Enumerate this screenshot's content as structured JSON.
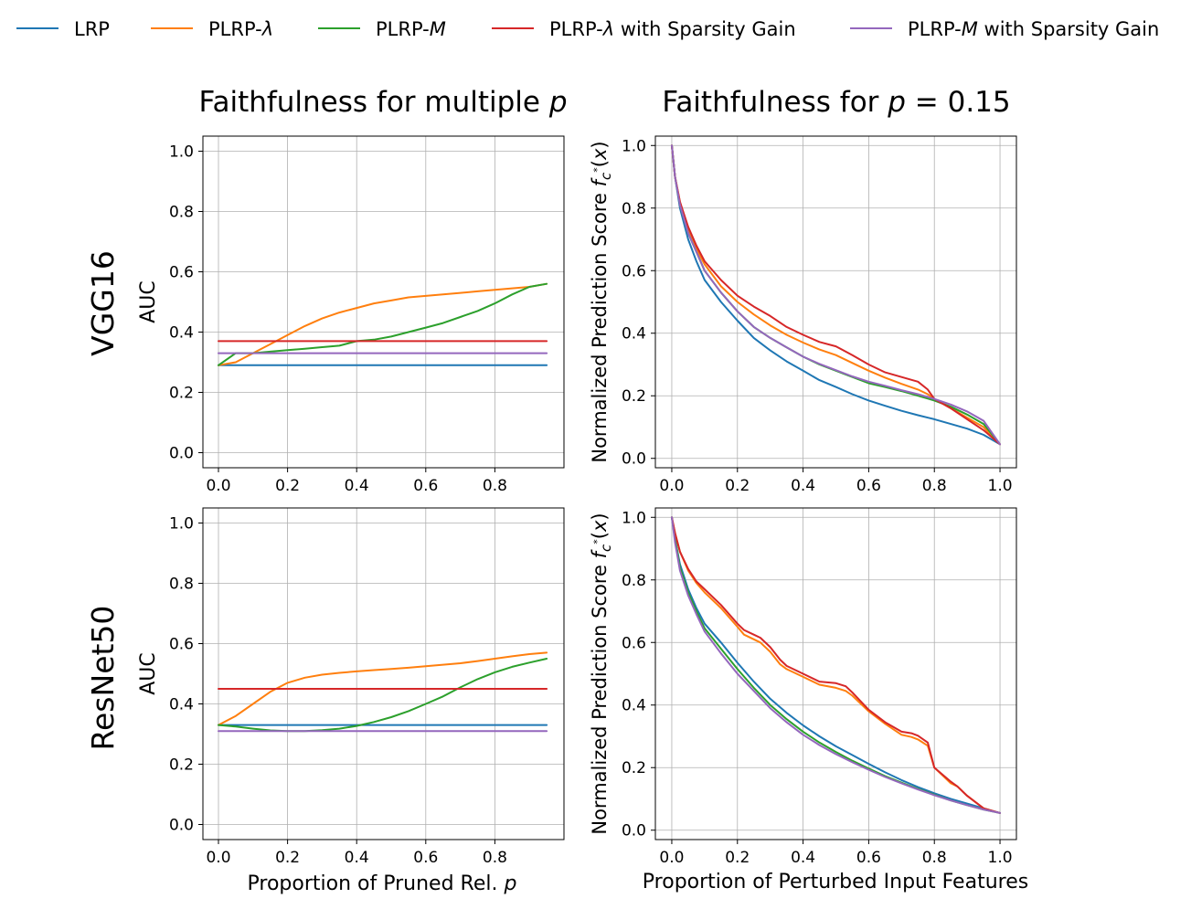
{
  "legend": [
    {
      "id": "lrp",
      "label": "LRP",
      "color": "#1f77b4"
    },
    {
      "id": "plrp_lambda",
      "label": "PLRP-λ",
      "color": "#ff7f0e"
    },
    {
      "id": "plrp_m",
      "label": "PLRP-M",
      "color": "#2ca02c"
    },
    {
      "id": "plrp_lambda_sg",
      "label": "PLRP-λ with Sparsity Gain",
      "color": "#d62728"
    },
    {
      "id": "plrp_m_sg",
      "label": "PLRP-M with Sparsity Gain",
      "color": "#9467bd"
    }
  ],
  "column_titles": [
    "Faithfulness for multiple p",
    "Faithfulness for p = 0.15"
  ],
  "row_labels": [
    "VGG16",
    "ResNet50"
  ],
  "chart_data": [
    {
      "type": "line",
      "title": "Faithfulness for multiple p",
      "row": "VGG16",
      "xlabel": "",
      "ylabel": "AUC",
      "xlim": [
        -0.045,
        1.0
      ],
      "ylim": [
        -0.05,
        1.05
      ],
      "xticks": [
        "0.0",
        "0.2",
        "0.4",
        "0.6",
        "0.8"
      ],
      "yticks": [
        "0.0",
        "0.2",
        "0.4",
        "0.6",
        "0.8",
        "1.0"
      ],
      "grid": true,
      "series": [
        {
          "name": "LRP",
          "x": [
            0,
            0.95
          ],
          "y": [
            0.29,
            0.29
          ]
        },
        {
          "name": "PLRP-λ",
          "x": [
            0,
            0.05,
            0.1,
            0.15,
            0.2,
            0.25,
            0.3,
            0.35,
            0.4,
            0.45,
            0.5,
            0.55,
            0.6,
            0.65,
            0.7,
            0.75,
            0.8,
            0.85,
            0.9,
            0.95
          ],
          "y": [
            0.29,
            0.3,
            0.33,
            0.36,
            0.39,
            0.42,
            0.445,
            0.465,
            0.48,
            0.495,
            0.505,
            0.515,
            0.52,
            0.525,
            0.53,
            0.535,
            0.54,
            0.545,
            0.55,
            0.56
          ]
        },
        {
          "name": "PLRP-M",
          "x": [
            0,
            0.05,
            0.1,
            0.15,
            0.2,
            0.25,
            0.3,
            0.35,
            0.4,
            0.45,
            0.5,
            0.55,
            0.6,
            0.65,
            0.7,
            0.75,
            0.8,
            0.85,
            0.9,
            0.95
          ],
          "y": [
            0.29,
            0.33,
            0.33,
            0.335,
            0.34,
            0.345,
            0.35,
            0.355,
            0.37,
            0.375,
            0.385,
            0.4,
            0.415,
            0.43,
            0.45,
            0.47,
            0.495,
            0.525,
            0.55,
            0.56
          ]
        },
        {
          "name": "PLRP-λ with Sparsity Gain",
          "x": [
            0,
            0.95
          ],
          "y": [
            0.37,
            0.37
          ]
        },
        {
          "name": "PLRP-M with Sparsity Gain",
          "x": [
            0,
            0.95
          ],
          "y": [
            0.33,
            0.33
          ]
        }
      ]
    },
    {
      "type": "line",
      "title": "Faithfulness for p = 0.15",
      "row": "VGG16",
      "xlabel": "",
      "ylabel": "Normalized Prediction Score f_c*(x)",
      "xlim": [
        -0.05,
        1.05
      ],
      "ylim": [
        -0.03,
        1.03
      ],
      "xticks": [
        "0.0",
        "0.2",
        "0.4",
        "0.6",
        "0.8",
        "1.0"
      ],
      "yticks": [
        "0.0",
        "0.2",
        "0.4",
        "0.6",
        "0.8",
        "1.0"
      ],
      "grid": true,
      "series": [
        {
          "name": "LRP",
          "x": [
            0,
            0.01,
            0.025,
            0.05,
            0.075,
            0.1,
            0.15,
            0.2,
            0.25,
            0.3,
            0.35,
            0.4,
            0.45,
            0.5,
            0.55,
            0.6,
            0.65,
            0.7,
            0.75,
            0.8,
            0.85,
            0.9,
            0.95,
            1.0
          ],
          "y": [
            1.0,
            0.9,
            0.8,
            0.7,
            0.63,
            0.57,
            0.5,
            0.44,
            0.385,
            0.345,
            0.31,
            0.28,
            0.25,
            0.228,
            0.205,
            0.185,
            0.168,
            0.152,
            0.138,
            0.125,
            0.11,
            0.095,
            0.075,
            0.045
          ]
        },
        {
          "name": "PLRP-λ",
          "x": [
            0,
            0.01,
            0.025,
            0.05,
            0.075,
            0.1,
            0.15,
            0.2,
            0.25,
            0.3,
            0.35,
            0.4,
            0.45,
            0.5,
            0.55,
            0.6,
            0.65,
            0.7,
            0.75,
            0.78,
            0.8,
            0.85,
            0.9,
            0.95,
            1.0
          ],
          "y": [
            1.0,
            0.9,
            0.82,
            0.73,
            0.67,
            0.62,
            0.55,
            0.5,
            0.46,
            0.425,
            0.395,
            0.37,
            0.348,
            0.33,
            0.305,
            0.28,
            0.258,
            0.238,
            0.22,
            0.205,
            0.19,
            0.16,
            0.13,
            0.1,
            0.045
          ]
        },
        {
          "name": "PLRP-M",
          "x": [
            0,
            0.01,
            0.025,
            0.05,
            0.075,
            0.1,
            0.15,
            0.2,
            0.25,
            0.3,
            0.35,
            0.4,
            0.45,
            0.5,
            0.55,
            0.6,
            0.65,
            0.7,
            0.75,
            0.8,
            0.85,
            0.9,
            0.95,
            1.0
          ],
          "y": [
            1.0,
            0.9,
            0.81,
            0.72,
            0.66,
            0.6,
            0.53,
            0.47,
            0.42,
            0.385,
            0.355,
            0.325,
            0.3,
            0.28,
            0.26,
            0.24,
            0.228,
            0.215,
            0.2,
            0.185,
            0.165,
            0.14,
            0.11,
            0.045
          ]
        },
        {
          "name": "PLRP-λ with Sparsity Gain",
          "x": [
            0,
            0.01,
            0.025,
            0.05,
            0.075,
            0.1,
            0.15,
            0.2,
            0.25,
            0.3,
            0.35,
            0.4,
            0.45,
            0.5,
            0.55,
            0.6,
            0.65,
            0.7,
            0.75,
            0.78,
            0.8,
            0.85,
            0.9,
            0.95,
            1.0
          ],
          "y": [
            1.0,
            0.9,
            0.82,
            0.74,
            0.68,
            0.63,
            0.57,
            0.52,
            0.485,
            0.455,
            0.42,
            0.395,
            0.372,
            0.358,
            0.33,
            0.3,
            0.275,
            0.26,
            0.245,
            0.22,
            0.19,
            0.16,
            0.125,
            0.09,
            0.045
          ]
        },
        {
          "name": "PLRP-M with Sparsity Gain",
          "x": [
            0,
            0.01,
            0.025,
            0.05,
            0.075,
            0.1,
            0.15,
            0.2,
            0.25,
            0.3,
            0.35,
            0.4,
            0.45,
            0.5,
            0.55,
            0.6,
            0.65,
            0.7,
            0.75,
            0.8,
            0.85,
            0.9,
            0.95,
            1.0
          ],
          "y": [
            1.0,
            0.9,
            0.81,
            0.72,
            0.66,
            0.6,
            0.53,
            0.47,
            0.42,
            0.385,
            0.355,
            0.325,
            0.302,
            0.282,
            0.262,
            0.245,
            0.232,
            0.218,
            0.205,
            0.19,
            0.172,
            0.15,
            0.12,
            0.045
          ]
        }
      ]
    },
    {
      "type": "line",
      "title": "",
      "row": "ResNet50",
      "xlabel": "Proportion of Pruned Rel. p",
      "ylabel": "AUC",
      "xlim": [
        -0.045,
        1.0
      ],
      "ylim": [
        -0.05,
        1.05
      ],
      "xticks": [
        "0.0",
        "0.2",
        "0.4",
        "0.6",
        "0.8"
      ],
      "yticks": [
        "0.0",
        "0.2",
        "0.4",
        "0.6",
        "0.8",
        "1.0"
      ],
      "grid": true,
      "series": [
        {
          "name": "LRP",
          "x": [
            0,
            0.95
          ],
          "y": [
            0.33,
            0.33
          ]
        },
        {
          "name": "PLRP-λ",
          "x": [
            0,
            0.05,
            0.1,
            0.15,
            0.2,
            0.25,
            0.3,
            0.35,
            0.4,
            0.45,
            0.5,
            0.55,
            0.6,
            0.65,
            0.7,
            0.75,
            0.8,
            0.85,
            0.9,
            0.95
          ],
          "y": [
            0.33,
            0.36,
            0.4,
            0.44,
            0.47,
            0.487,
            0.497,
            0.503,
            0.508,
            0.512,
            0.516,
            0.52,
            0.525,
            0.53,
            0.535,
            0.542,
            0.55,
            0.558,
            0.565,
            0.57
          ]
        },
        {
          "name": "PLRP-M",
          "x": [
            0,
            0.05,
            0.1,
            0.15,
            0.2,
            0.25,
            0.3,
            0.35,
            0.4,
            0.45,
            0.5,
            0.55,
            0.6,
            0.65,
            0.7,
            0.75,
            0.8,
            0.85,
            0.9,
            0.95
          ],
          "y": [
            0.33,
            0.325,
            0.318,
            0.312,
            0.31,
            0.31,
            0.313,
            0.318,
            0.327,
            0.34,
            0.356,
            0.376,
            0.4,
            0.425,
            0.455,
            0.482,
            0.505,
            0.523,
            0.537,
            0.55
          ]
        },
        {
          "name": "PLRP-λ with Sparsity Gain",
          "x": [
            0,
            0.95
          ],
          "y": [
            0.45,
            0.45
          ]
        },
        {
          "name": "PLRP-M with Sparsity Gain",
          "x": [
            0,
            0.95
          ],
          "y": [
            0.31,
            0.31
          ]
        }
      ]
    },
    {
      "type": "line",
      "title": "",
      "row": "ResNet50",
      "xlabel": "Proportion of Perturbed Input Features",
      "ylabel": "Normalized Prediction Score f_c*(x)",
      "xlim": [
        -0.05,
        1.05
      ],
      "ylim": [
        -0.03,
        1.03
      ],
      "xticks": [
        "0.0",
        "0.2",
        "0.4",
        "0.6",
        "0.8",
        "1.0"
      ],
      "yticks": [
        "0.0",
        "0.2",
        "0.4",
        "0.6",
        "0.8",
        "1.0"
      ],
      "grid": true,
      "series": [
        {
          "name": "LRP",
          "x": [
            0,
            0.01,
            0.025,
            0.05,
            0.075,
            0.1,
            0.15,
            0.2,
            0.25,
            0.3,
            0.35,
            0.4,
            0.45,
            0.5,
            0.55,
            0.6,
            0.65,
            0.7,
            0.75,
            0.8,
            0.85,
            0.9,
            0.95,
            1.0
          ],
          "y": [
            1.0,
            0.93,
            0.85,
            0.77,
            0.71,
            0.66,
            0.6,
            0.535,
            0.475,
            0.42,
            0.375,
            0.335,
            0.3,
            0.268,
            0.24,
            0.212,
            0.185,
            0.16,
            0.138,
            0.118,
            0.1,
            0.085,
            0.07,
            0.055
          ]
        },
        {
          "name": "PLRP-λ",
          "x": [
            0,
            0.01,
            0.025,
            0.05,
            0.075,
            0.1,
            0.15,
            0.2,
            0.22,
            0.25,
            0.27,
            0.3,
            0.33,
            0.35,
            0.4,
            0.45,
            0.5,
            0.53,
            0.55,
            0.6,
            0.65,
            0.7,
            0.73,
            0.75,
            0.78,
            0.8,
            0.85,
            0.87,
            0.9,
            0.95,
            1.0
          ],
          "y": [
            1.0,
            0.95,
            0.89,
            0.83,
            0.79,
            0.76,
            0.71,
            0.65,
            0.625,
            0.61,
            0.6,
            0.57,
            0.53,
            0.515,
            0.49,
            0.465,
            0.455,
            0.445,
            0.43,
            0.38,
            0.34,
            0.305,
            0.298,
            0.29,
            0.27,
            0.2,
            0.15,
            0.14,
            0.11,
            0.07,
            0.055
          ]
        },
        {
          "name": "PLRP-M",
          "x": [
            0,
            0.01,
            0.025,
            0.05,
            0.075,
            0.1,
            0.15,
            0.2,
            0.25,
            0.3,
            0.35,
            0.4,
            0.45,
            0.5,
            0.55,
            0.6,
            0.65,
            0.7,
            0.75,
            0.8,
            0.85,
            0.9,
            0.95,
            1.0
          ],
          "y": [
            1.0,
            0.93,
            0.84,
            0.76,
            0.7,
            0.645,
            0.58,
            0.515,
            0.455,
            0.4,
            0.355,
            0.315,
            0.28,
            0.25,
            0.222,
            0.197,
            0.173,
            0.152,
            0.132,
            0.113,
            0.095,
            0.08,
            0.066,
            0.055
          ]
        },
        {
          "name": "PLRP-λ with Sparsity Gain",
          "x": [
            0,
            0.01,
            0.025,
            0.05,
            0.075,
            0.1,
            0.15,
            0.2,
            0.22,
            0.25,
            0.27,
            0.3,
            0.33,
            0.35,
            0.4,
            0.45,
            0.5,
            0.53,
            0.55,
            0.6,
            0.65,
            0.7,
            0.73,
            0.75,
            0.78,
            0.8,
            0.85,
            0.87,
            0.9,
            0.95,
            1.0
          ],
          "y": [
            1.0,
            0.95,
            0.89,
            0.835,
            0.795,
            0.77,
            0.72,
            0.66,
            0.64,
            0.625,
            0.615,
            0.585,
            0.545,
            0.525,
            0.5,
            0.475,
            0.47,
            0.46,
            0.44,
            0.385,
            0.345,
            0.315,
            0.31,
            0.302,
            0.28,
            0.2,
            0.155,
            0.14,
            0.11,
            0.07,
            0.055
          ]
        },
        {
          "name": "PLRP-M with Sparsity Gain",
          "x": [
            0,
            0.01,
            0.025,
            0.05,
            0.075,
            0.1,
            0.15,
            0.2,
            0.25,
            0.3,
            0.35,
            0.4,
            0.45,
            0.5,
            0.55,
            0.6,
            0.65,
            0.7,
            0.75,
            0.8,
            0.85,
            0.9,
            0.95,
            1.0
          ],
          "y": [
            1.0,
            0.92,
            0.83,
            0.75,
            0.69,
            0.635,
            0.565,
            0.5,
            0.445,
            0.39,
            0.345,
            0.305,
            0.272,
            0.243,
            0.217,
            0.193,
            0.17,
            0.15,
            0.13,
            0.112,
            0.095,
            0.08,
            0.066,
            0.055
          ]
        }
      ]
    }
  ]
}
